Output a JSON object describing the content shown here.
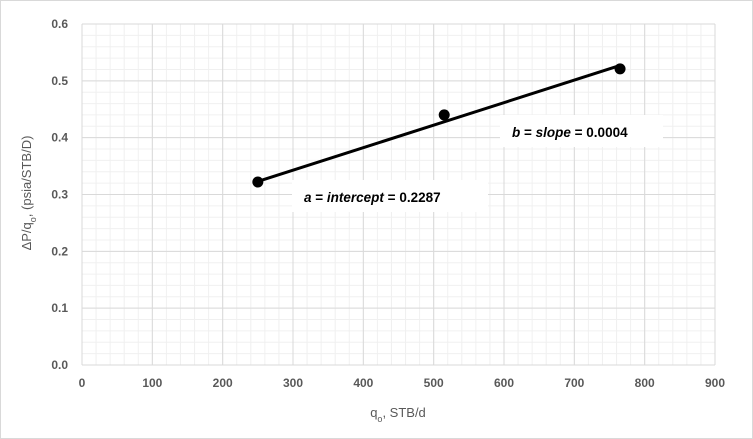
{
  "chart_data": {
    "type": "scatter",
    "title": "",
    "xlabel": "q",
    "xlabel_subscript": "o",
    "xlabel_suffix": ", STB/d",
    "ylabel": "ΔP/q",
    "ylabel_subscript": "o",
    "ylabel_suffix": ", (psia/STB/D)",
    "xlim": [
      0,
      900
    ],
    "ylim": [
      0.0,
      0.6
    ],
    "x_ticks": [
      "0",
      "100",
      "200",
      "300",
      "400",
      "500",
      "600",
      "700",
      "800",
      "900"
    ],
    "y_ticks": [
      "0.0",
      "0.1",
      "0.2",
      "0.3",
      "0.4",
      "0.5",
      "0.6"
    ],
    "grid": true,
    "series": [
      {
        "type": "scatter",
        "x": [
          250,
          515,
          765
        ],
        "y": [
          0.322,
          0.44,
          0.521
        ],
        "color": "#000000"
      },
      {
        "type": "line",
        "x": [
          250,
          765
        ],
        "y": [
          0.323,
          0.527
        ],
        "color": "#000000"
      }
    ],
    "annotations": [
      {
        "var": "a",
        "eq1": " = ",
        "word": "intercept",
        "eq2": " = ",
        "value": "0.2287"
      },
      {
        "var": "b",
        "eq1": " = ",
        "word": "slope",
        "eq2": " = ",
        "value": "0.0004"
      }
    ]
  }
}
